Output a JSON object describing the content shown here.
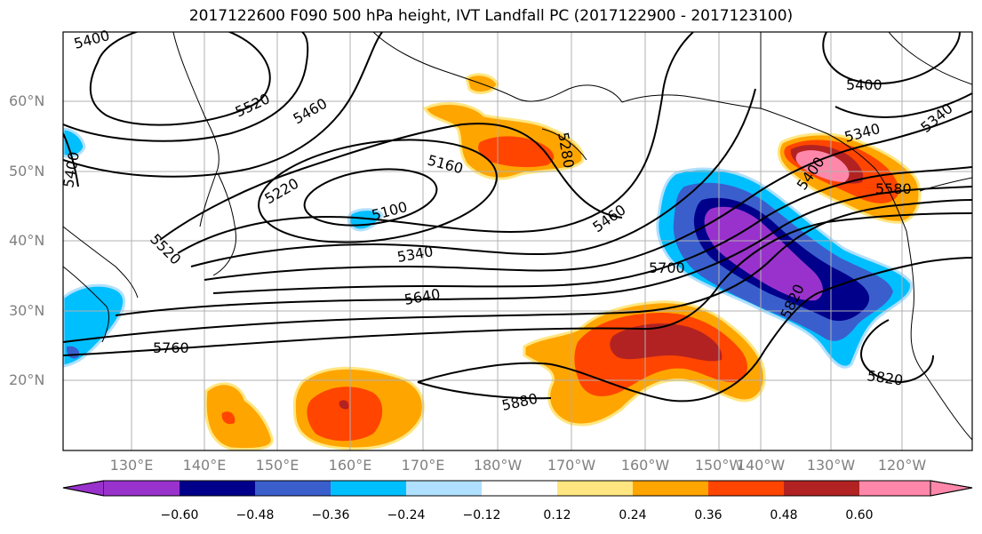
{
  "title": "2017122600 F090 500 hPa height, IVT Landfall PC (2017122900 - 2017123100)",
  "map": {
    "lat_labels": [
      "60°N",
      "50°N",
      "40°N",
      "30°N",
      "20°N"
    ],
    "lon_labels": [
      "130°E",
      "140°E",
      "150°E",
      "160°E",
      "170°E",
      "180°W",
      "170°W",
      "160°W",
      "150°W",
      "140°W",
      "130°W",
      "120°W"
    ],
    "contour_labels": [
      "5400",
      "5520",
      "5460",
      "5220",
      "5160",
      "5280",
      "5100",
      "5400",
      "5520",
      "5340",
      "5460",
      "5640",
      "5700",
      "5760",
      "5820",
      "5880",
      "5820",
      "5400",
      "5340",
      "5400",
      "5580",
      "5340"
    ],
    "contour_color": "#000000",
    "gridline_color": "#b0b0b0"
  },
  "colorbar": {
    "ticks": [
      "−0.60",
      "−0.48",
      "−0.36",
      "−0.24",
      "−0.12",
      "0.12",
      "0.24",
      "0.36",
      "0.48",
      "0.60"
    ],
    "colors": [
      "#9932cc",
      "#00008b",
      "#3a5fcd",
      "#00bfff",
      "#b0e0ff",
      "#ffffff",
      "#ffe680",
      "#ffa500",
      "#ff4500",
      "#b22222",
      "#ff88aa"
    ]
  }
}
